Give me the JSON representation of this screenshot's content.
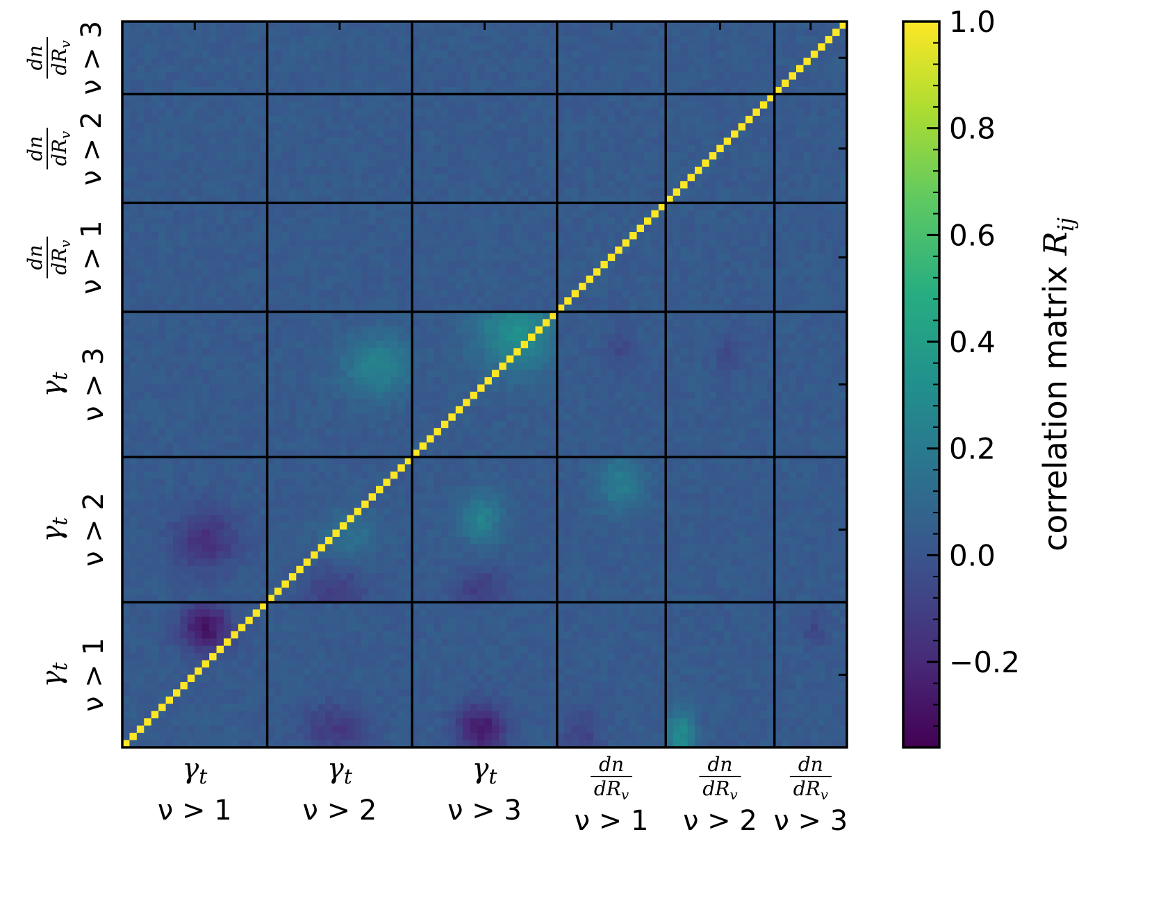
{
  "chart_data": {
    "type": "heatmap",
    "colormap": "viridis",
    "matrix_size": 100,
    "blocks": [
      {
        "symbol": "γ",
        "subscript": "t",
        "threshold": "ν > 1",
        "kind": "shear",
        "bins": 20
      },
      {
        "symbol": "γ",
        "subscript": "t",
        "threshold": "ν > 2",
        "kind": "shear",
        "bins": 20
      },
      {
        "symbol": "γ",
        "subscript": "t",
        "threshold": "ν > 3",
        "kind": "shear",
        "bins": 20
      },
      {
        "numerator": "dn",
        "denominator": "dR",
        "denominator_sub": "v",
        "threshold": "ν > 1",
        "kind": "abundance",
        "bins": 15
      },
      {
        "numerator": "dn",
        "denominator": "dR",
        "denominator_sub": "v",
        "threshold": "ν > 2",
        "kind": "abundance",
        "bins": 15
      },
      {
        "numerator": "dn",
        "denominator": "dR",
        "denominator_sub": "v",
        "threshold": "ν > 3",
        "kind": "abundance",
        "bins": 10
      }
    ],
    "diagonal_value": 1.0,
    "background_value": 0.03,
    "noise_amplitude": 0.03,
    "features": [
      {
        "row_block": 3,
        "col_block": 2,
        "center": [
          0.15,
          0.7
        ],
        "spread": [
          0.2,
          0.2
        ],
        "value": 0.28
      },
      {
        "row_block": 3,
        "col_block": 1,
        "center": [
          0.4,
          0.75
        ],
        "spread": [
          0.15,
          0.18
        ],
        "value": 0.22
      },
      {
        "row_block": 4,
        "col_block": 2,
        "center": [
          0.45,
          0.45
        ],
        "spread": [
          0.12,
          0.1
        ],
        "value": 0.22
      },
      {
        "row_block": 4,
        "col_block": 1,
        "center": [
          0.55,
          0.55
        ],
        "spread": [
          0.12,
          0.14
        ],
        "value": 0.12
      },
      {
        "row_block": 5,
        "col_block": 2,
        "center": [
          0.9,
          0.45
        ],
        "spread": [
          0.12,
          0.12
        ],
        "value": -0.3
      },
      {
        "row_block": 5,
        "col_block": 1,
        "center": [
          0.9,
          0.45
        ],
        "spread": [
          0.12,
          0.15
        ],
        "value": -0.16
      },
      {
        "row_block": 5,
        "col_block": 3,
        "center": [
          0.95,
          0.2
        ],
        "spread": [
          0.12,
          0.12
        ],
        "value": -0.12
      },
      {
        "row_block": 5,
        "col_block": 4,
        "center": [
          0.95,
          0.1
        ],
        "spread": [
          0.12,
          0.1
        ],
        "value": 0.28
      },
      {
        "row_block": 4,
        "col_block": 2,
        "center": [
          0.95,
          0.45
        ],
        "spread": [
          0.12,
          0.12
        ],
        "value": -0.14
      },
      {
        "row_block": 4,
        "col_block": 1,
        "center": [
          0.95,
          0.45
        ],
        "spread": [
          0.12,
          0.15
        ],
        "value": -0.14
      },
      {
        "row_block": 5,
        "col_block": 0,
        "center": [
          0.2,
          0.55
        ],
        "spread": [
          0.12,
          0.12
        ],
        "value": -0.32
      },
      {
        "row_block": 4,
        "col_block": 0,
        "center": [
          0.6,
          0.55
        ],
        "spread": [
          0.15,
          0.15
        ],
        "value": -0.2
      },
      {
        "row_block": 4,
        "col_block": 3,
        "center": [
          0.2,
          0.55
        ],
        "spread": [
          0.15,
          0.15
        ],
        "value": 0.18
      },
      {
        "row_block": 3,
        "col_block": 3,
        "center": [
          0.3,
          0.55
        ],
        "spread": [
          0.1,
          0.1
        ],
        "value": -0.08
      },
      {
        "row_block": 3,
        "col_block": 4,
        "center": [
          0.3,
          0.55
        ],
        "spread": [
          0.1,
          0.1
        ],
        "value": -0.08
      },
      {
        "row_block": 5,
        "col_block": 5,
        "center": [
          0.2,
          0.5
        ],
        "spread": [
          0.1,
          0.1
        ],
        "value": -0.1
      }
    ],
    "colorbar": {
      "label": "correlation matrix R",
      "label_subscript": "ij",
      "range": [
        -0.36,
        1.0
      ],
      "tick_values": [
        -0.2,
        0.0,
        0.2,
        0.4,
        0.6,
        0.8,
        1.0
      ],
      "tick_labels": [
        "−0.2",
        "0.0",
        "0.2",
        "0.4",
        "0.6",
        "0.8",
        "1.0"
      ],
      "minor_step": 0.04
    }
  }
}
